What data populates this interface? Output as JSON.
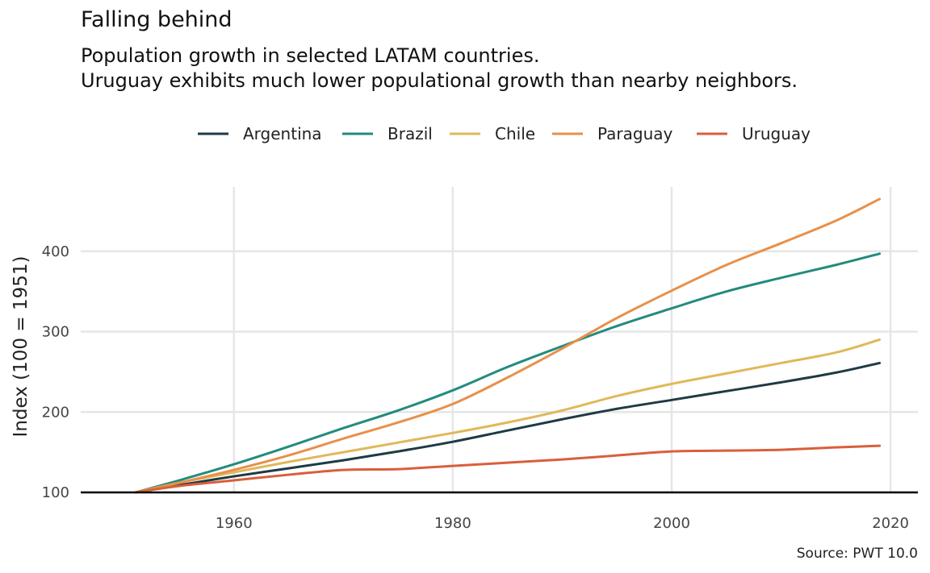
{
  "chart_data": {
    "type": "line",
    "title": "Falling behind",
    "subtitle": [
      "Population growth in selected LATAM countries.",
      "Uruguay exhibits much lower populational growth than nearby neighbors."
    ],
    "xlabel": "",
    "ylabel": "Index (100 = 1951)",
    "caption": "Source: PWT 10.0",
    "xlim": [
      1946,
      2022.5
    ],
    "ylim": [
      100,
      480
    ],
    "x_ticks": [
      1960,
      1980,
      2000,
      2020
    ],
    "y_ticks": [
      100,
      200,
      300,
      400
    ],
    "grid": true,
    "baseline": 100,
    "legend_position": "top",
    "x": [
      1951,
      1955,
      1960,
      1965,
      1970,
      1975,
      1980,
      1985,
      1990,
      1995,
      2000,
      2005,
      2010,
      2015,
      2019
    ],
    "series": [
      {
        "name": "Argentina",
        "color": "#1f3a45",
        "values": [
          100,
          109,
          120,
          130,
          140,
          151,
          163,
          177,
          191,
          204,
          215,
          226,
          237,
          249,
          261
        ]
      },
      {
        "name": "Brazil",
        "color": "#238b7d",
        "values": [
          100,
          115,
          135,
          157,
          180,
          202,
          227,
          256,
          282,
          307,
          329,
          350,
          367,
          383,
          397
        ]
      },
      {
        "name": "Chile",
        "color": "#e0b85a",
        "values": [
          100,
          112,
          125,
          138,
          150,
          162,
          174,
          187,
          202,
          220,
          235,
          248,
          261,
          274,
          290
        ]
      },
      {
        "name": "Paraguay",
        "color": "#e8904a",
        "values": [
          100,
          112,
          128,
          146,
          167,
          187,
          210,
          243,
          279,
          317,
          351,
          383,
          410,
          438,
          465
        ]
      },
      {
        "name": "Uruguay",
        "color": "#d95f3b",
        "values": [
          100,
          108,
          115,
          122,
          128,
          129,
          133,
          137,
          141,
          146,
          151,
          152,
          153,
          156,
          158
        ]
      }
    ]
  }
}
